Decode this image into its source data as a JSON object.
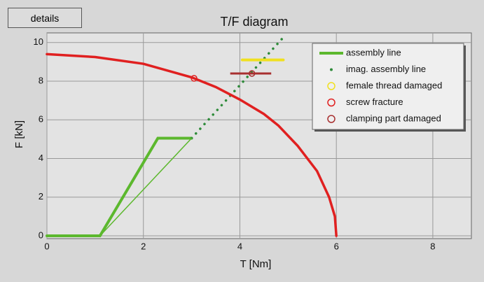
{
  "button": "details",
  "chart_data": {
    "type": "line",
    "title": "T/F diagram",
    "xlabel": "T [Nm]",
    "ylabel": "F [kN]",
    "xlim": [
      0,
      8.8
    ],
    "ylim": [
      0,
      10.5
    ],
    "xticks": [
      0,
      2,
      4,
      6,
      8
    ],
    "yticks": [
      0,
      2,
      4,
      6,
      8,
      10
    ],
    "grid": true,
    "legend": "upper right",
    "series": [
      {
        "name": "assembly line",
        "color": "#5cb82e",
        "style": "line",
        "x": [
          0,
          1.1,
          2.3,
          3.0
        ],
        "y": [
          0,
          0,
          5.05,
          5.05
        ]
      },
      {
        "name": "imag. assembly line",
        "color": "#2e8b3a",
        "style": "dotted",
        "x": [
          3.0,
          4.95
        ],
        "y": [
          5.05,
          10.4
        ]
      },
      {
        "name": "female thread damaged",
        "color": "#f0e020",
        "style": "bar",
        "x": [
          4.05,
          4.9
        ],
        "y": [
          9.1,
          9.1
        ]
      },
      {
        "name": "screw fracture",
        "color": "#e02020",
        "style": "circle",
        "x": [
          3.05
        ],
        "y": [
          8.15
        ]
      },
      {
        "name": "clamping part damaged",
        "color": "#a83030",
        "style": "circle-bar",
        "x": [
          3.8,
          4.25,
          4.65
        ],
        "y": [
          8.4,
          8.4,
          8.4
        ]
      },
      {
        "color": "#5cb82e",
        "style": "thin",
        "x": [
          1.1,
          3.0
        ],
        "y": [
          0,
          5.05
        ]
      },
      {
        "color": "#e02020",
        "style": "curve",
        "x": [
          0,
          1,
          2,
          3,
          3.5,
          4,
          4.5,
          4.8,
          5.2,
          5.6,
          5.85,
          5.97,
          6.0
        ],
        "y": [
          9.4,
          9.25,
          8.9,
          8.2,
          7.7,
          7.05,
          6.3,
          5.7,
          4.65,
          3.35,
          2,
          1,
          0
        ]
      }
    ]
  }
}
